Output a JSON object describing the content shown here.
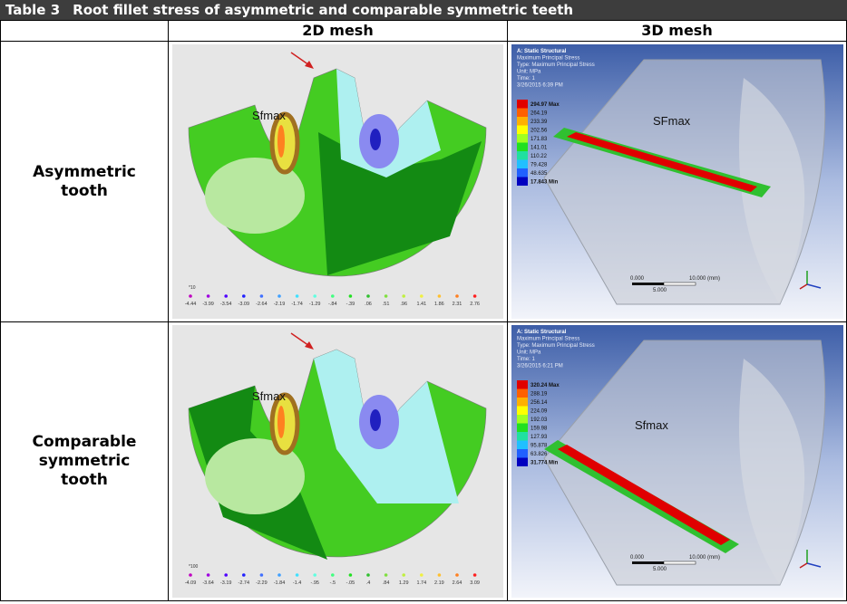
{
  "table": {
    "number": "Table 3",
    "title": "Root fillet stress of asymmetric and comparable symmetric teeth",
    "columns": [
      "2D mesh",
      "3D mesh"
    ],
    "rows": [
      {
        "label": [
          "Asymmetric",
          "tooth"
        ],
        "fe2d": {
          "callout": "Sfmax",
          "unit": "*10",
          "legend": [
            "-4.44",
            "-3.99",
            "-3.54",
            "-3.09",
            "-2.64",
            "-2.19",
            "-1.74",
            "-1.29",
            "-.84",
            "-.39",
            ".06",
            ".51",
            ".96",
            "1.41",
            "1.86",
            "2.31",
            "2.76"
          ]
        },
        "fe3d": {
          "header": [
            "A: Static Structural",
            "Maximum Principal Stress",
            "Type: Maximum Principal Stress",
            "Unit: MPa",
            "Time: 1",
            "3/26/2015 6:39 PM"
          ],
          "legend": [
            "294.97 Max",
            "264.19",
            "233.39",
            "202.56",
            "171.83",
            "141.01",
            "110.22",
            "79.428",
            "48.635",
            "17.843 Min"
          ],
          "callout": "SFmax",
          "scale": [
            "0.000",
            "10.000 (mm)",
            "5.000"
          ]
        }
      },
      {
        "label": [
          "Comparable",
          "symmetric",
          "tooth"
        ],
        "fe2d": {
          "callout": "Sfmax",
          "unit": "*100",
          "legend": [
            "-4.09",
            "-3.64",
            "-3.19",
            "-2.74",
            "-2.29",
            "-1.84",
            "-1.4",
            "-.95",
            "-.5",
            "-.05",
            ".4",
            ".84",
            "1.29",
            "1.74",
            "2.19",
            "2.64",
            "3.09"
          ]
        },
        "fe3d": {
          "header": [
            "A: Static Structural",
            "Maximum Principal Stress",
            "Type: Maximum Principal Stress",
            "Unit: MPa",
            "Time: 1",
            "3/26/2015 6:21 PM"
          ],
          "legend": [
            "320.24 Max",
            "288.19",
            "256.14",
            "224.09",
            "192.03",
            "159.98",
            "127.93",
            "95.878",
            "63.826",
            "31.774 Min"
          ],
          "callout": "Sfmax",
          "scale": [
            "0.000",
            "10.000 (mm)",
            "5.000"
          ]
        }
      }
    ]
  }
}
